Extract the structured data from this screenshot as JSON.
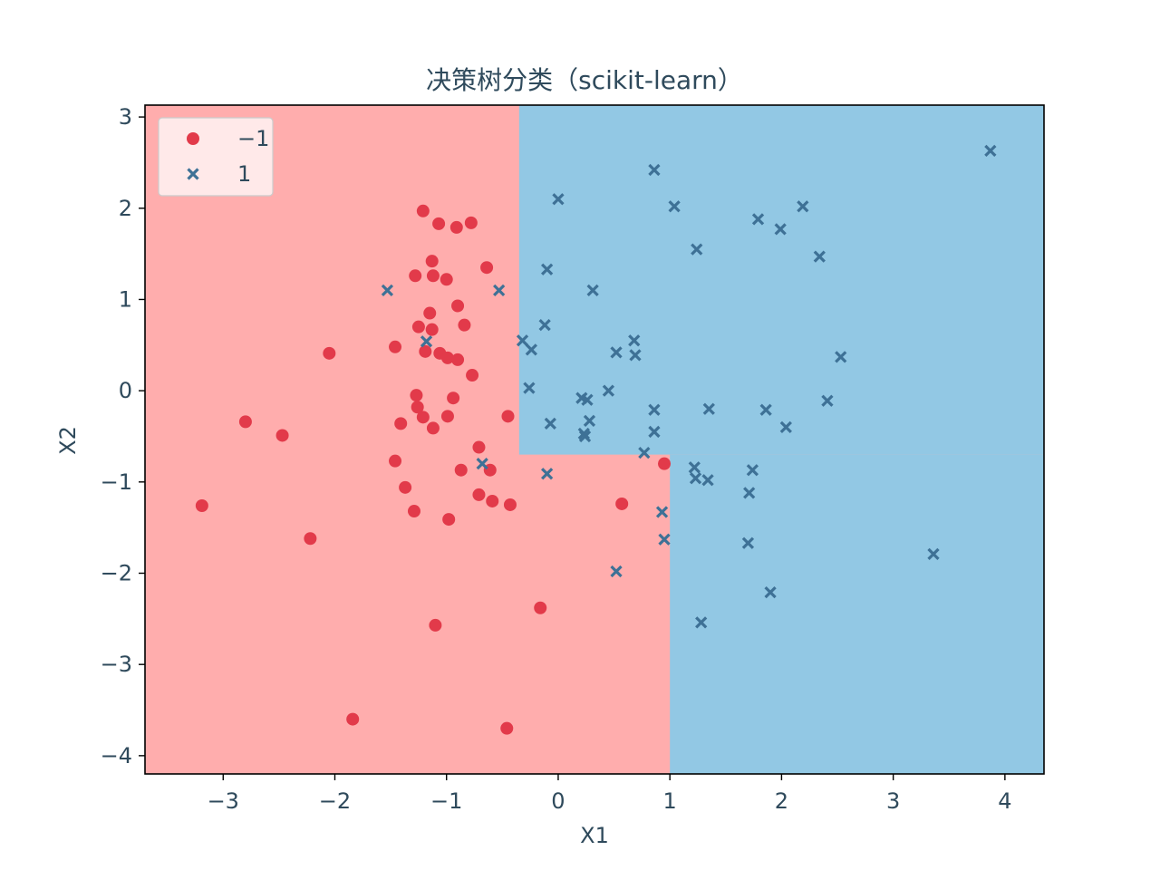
{
  "chart_data": {
    "type": "scatter",
    "title": "决策树分类（scikit-learn）",
    "xlabel": "X1",
    "ylabel": "X2",
    "xlim": [
      -3.7,
      4.35
    ],
    "ylim": [
      -4.2,
      3.13
    ],
    "xticks": [
      -3,
      -2,
      -1,
      0,
      1,
      2,
      3,
      4
    ],
    "xtick_labels": [
      "−3",
      "−2",
      "−1",
      "0",
      "1",
      "2",
      "3",
      "4"
    ],
    "yticks": [
      -4,
      -3,
      -2,
      -1,
      0,
      1,
      2,
      3
    ],
    "ytick_labels": [
      "−4",
      "−3",
      "−2",
      "−1",
      "0",
      "1",
      "2",
      "3"
    ],
    "grid": false,
    "legend_position": "top-left",
    "decision_regions": [
      {
        "class": "-1",
        "color": "#ffadad",
        "x": [
          -3.7,
          4.35
        ],
        "y": [
          -4.2,
          3.13
        ]
      },
      {
        "class": "1",
        "color": "#92c8e4",
        "x": [
          -0.35,
          4.35
        ],
        "y": [
          -0.7,
          3.13
        ]
      },
      {
        "class": "1",
        "color": "#92c8e4",
        "x": [
          1.0,
          4.35
        ],
        "y": [
          -4.2,
          -0.7
        ]
      }
    ],
    "series": [
      {
        "name": "−1",
        "marker": "circle",
        "color": "#e23a4a",
        "points": [
          [
            -3.19,
            -1.26
          ],
          [
            -2.8,
            -0.34
          ],
          [
            -2.47,
            -0.49
          ],
          [
            -2.22,
            -1.62
          ],
          [
            -2.05,
            0.41
          ],
          [
            -1.84,
            -3.6
          ],
          [
            -1.46,
            0.48
          ],
          [
            -1.46,
            -0.77
          ],
          [
            -1.41,
            -0.36
          ],
          [
            -1.37,
            -1.06
          ],
          [
            -1.29,
            -1.32
          ],
          [
            -1.27,
            -0.05
          ],
          [
            -1.26,
            -0.18
          ],
          [
            -1.28,
            1.26
          ],
          [
            -1.25,
            0.7
          ],
          [
            -1.21,
            1.97
          ],
          [
            -1.21,
            -0.29
          ],
          [
            -1.19,
            0.43
          ],
          [
            -1.15,
            0.85
          ],
          [
            -1.13,
            0.67
          ],
          [
            -1.13,
            1.42
          ],
          [
            -1.12,
            1.26
          ],
          [
            -1.12,
            -0.41
          ],
          [
            -1.1,
            -2.57
          ],
          [
            -1.07,
            1.83
          ],
          [
            -1.06,
            0.41
          ],
          [
            -1.0,
            1.22
          ],
          [
            -0.99,
            0.36
          ],
          [
            -0.99,
            -0.28
          ],
          [
            -0.98,
            -1.41
          ],
          [
            -0.94,
            -0.08
          ],
          [
            -0.91,
            1.79
          ],
          [
            -0.9,
            0.93
          ],
          [
            -0.9,
            0.34
          ],
          [
            -0.87,
            -0.87
          ],
          [
            -0.84,
            0.72
          ],
          [
            -0.78,
            1.84
          ],
          [
            -0.77,
            0.17
          ],
          [
            -0.71,
            -0.62
          ],
          [
            -0.71,
            -1.14
          ],
          [
            -0.64,
            1.35
          ],
          [
            -0.61,
            -0.87
          ],
          [
            -0.59,
            -1.21
          ],
          [
            -0.45,
            -0.28
          ],
          [
            -0.43,
            -1.25
          ],
          [
            -0.46,
            -3.7
          ],
          [
            -0.16,
            -2.38
          ],
          [
            0.57,
            -1.24
          ],
          [
            0.95,
            -0.8
          ]
        ]
      },
      {
        "name": "1",
        "marker": "x",
        "color": "#3e7196",
        "points": [
          [
            -1.53,
            1.1
          ],
          [
            -1.18,
            0.54
          ],
          [
            -0.68,
            -0.8
          ],
          [
            -0.53,
            1.1
          ],
          [
            -0.32,
            0.55
          ],
          [
            -0.24,
            0.45
          ],
          [
            -0.26,
            0.03
          ],
          [
            -0.12,
            0.72
          ],
          [
            -0.1,
            1.33
          ],
          [
            -0.1,
            -0.91
          ],
          [
            -0.07,
            -0.36
          ],
          [
            0.0,
            2.1
          ],
          [
            0.21,
            -0.08
          ],
          [
            0.23,
            -0.47
          ],
          [
            0.24,
            -0.5
          ],
          [
            0.26,
            -0.1
          ],
          [
            0.28,
            -0.33
          ],
          [
            0.31,
            1.1
          ],
          [
            0.45,
            0.0
          ],
          [
            0.52,
            0.42
          ],
          [
            0.52,
            -1.98
          ],
          [
            0.68,
            0.55
          ],
          [
            0.69,
            0.39
          ],
          [
            0.77,
            -0.68
          ],
          [
            0.86,
            2.42
          ],
          [
            0.86,
            -0.21
          ],
          [
            0.86,
            -0.45
          ],
          [
            0.93,
            -1.33
          ],
          [
            0.95,
            -1.63
          ],
          [
            1.04,
            2.02
          ],
          [
            1.22,
            -0.84
          ],
          [
            1.23,
            -0.96
          ],
          [
            1.24,
            1.55
          ],
          [
            1.28,
            -2.54
          ],
          [
            1.34,
            -0.98
          ],
          [
            1.35,
            -0.2
          ],
          [
            1.7,
            -1.67
          ],
          [
            1.71,
            -1.12
          ],
          [
            1.74,
            -0.87
          ],
          [
            1.79,
            1.88
          ],
          [
            1.86,
            -0.21
          ],
          [
            1.9,
            -2.21
          ],
          [
            1.99,
            1.77
          ],
          [
            2.04,
            -0.4
          ],
          [
            2.19,
            2.02
          ],
          [
            2.34,
            1.47
          ],
          [
            2.41,
            -0.11
          ],
          [
            2.53,
            0.37
          ],
          [
            3.36,
            -1.79
          ],
          [
            3.87,
            2.63
          ]
        ]
      }
    ]
  }
}
